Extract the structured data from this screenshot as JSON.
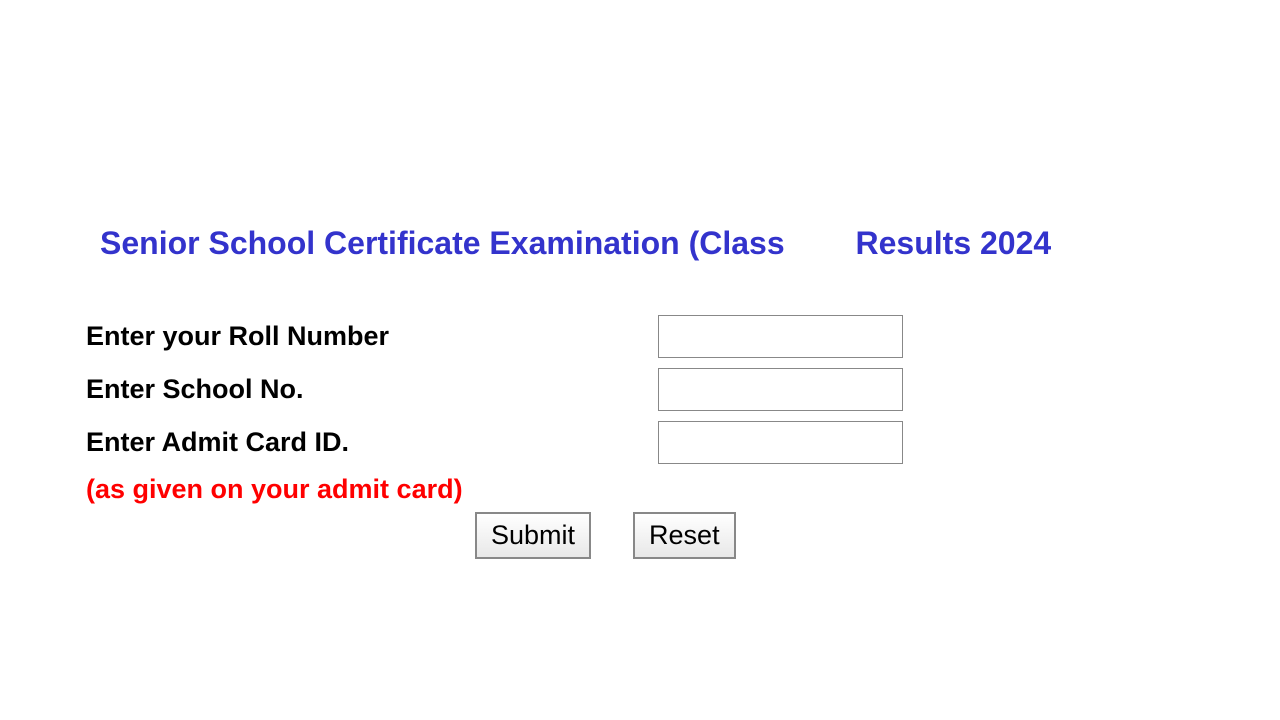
{
  "title": {
    "part1": "Senior School Certificate Examination (Class",
    "part2": "Results 2024",
    "color": "#3333cc",
    "fontsize": 32
  },
  "form": {
    "fields": [
      {
        "label": "Enter your Roll Number",
        "value": ""
      },
      {
        "label": "Enter School No.",
        "value": ""
      },
      {
        "label": "Enter Admit Card ID.",
        "value": ""
      }
    ],
    "hint": "(as given on your admit card)",
    "hint_color": "#ff0000",
    "label_color": "#000000",
    "label_fontsize": 27
  },
  "buttons": {
    "submit": "Submit",
    "reset": "Reset"
  },
  "colors": {
    "background": "#ffffff",
    "input_border": "#888888",
    "button_border": "#888888"
  }
}
